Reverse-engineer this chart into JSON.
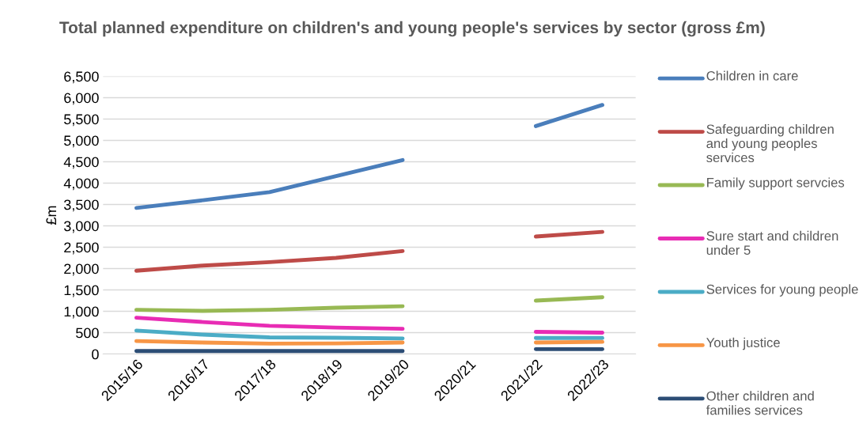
{
  "chart_data": {
    "type": "line",
    "title": "Total planned expenditure on children's and young people's services by sector (gross £m)",
    "ylabel": "£m",
    "categories": [
      "2015/16",
      "2016/17",
      "2017/18",
      "2018/19",
      "2019/20",
      "2020/21",
      "2021/22",
      "2022/23"
    ],
    "ylim": [
      0,
      6500
    ],
    "yticks": [
      {
        "value": 0,
        "label": "0"
      },
      {
        "value": 500,
        "label": "500"
      },
      {
        "value": 1000,
        "label": "1,000"
      },
      {
        "value": 1500,
        "label": "1,500"
      },
      {
        "value": 2000,
        "label": "2,000"
      },
      {
        "value": 2500,
        "label": "2,500"
      },
      {
        "value": 3000,
        "label": "3,000"
      },
      {
        "value": 3500,
        "label": "3,500"
      },
      {
        "value": 4000,
        "label": "4,000"
      },
      {
        "value": 4500,
        "label": "4,500"
      },
      {
        "value": 5000,
        "label": "5,000"
      },
      {
        "value": 5500,
        "label": "5,500"
      },
      {
        "value": 6000,
        "label": "6,000"
      },
      {
        "value": 6500,
        "label": "6,500"
      }
    ],
    "grid": "y",
    "legend": "right",
    "marker": "none",
    "line_style": "solid",
    "series": [
      {
        "name": "Children in care",
        "color": "#4a7ebb",
        "values": [
          3420,
          3600,
          3790,
          4165,
          4540,
          null,
          5335,
          5830
        ]
      },
      {
        "name": "Safeguarding children and young peoples services",
        "color": "#be4b48",
        "values": [
          1950,
          2070,
          2150,
          2250,
          2410,
          null,
          2750,
          2860
        ]
      },
      {
        "name": "Family support servcies",
        "color": "#98b954",
        "values": [
          1035,
          1010,
          1035,
          1085,
          1120,
          null,
          1250,
          1330
        ]
      },
      {
        "name": "Sure start and children under 5",
        "color": "#e82cb4",
        "values": [
          850,
          750,
          660,
          620,
          590,
          null,
          520,
          500
        ]
      },
      {
        "name": "Services for young people",
        "color": "#4bacc6",
        "values": [
          550,
          455,
          390,
          380,
          365,
          null,
          375,
          375
        ]
      },
      {
        "name": "Youth justice",
        "color": "#f79646",
        "values": [
          305,
          270,
          245,
          250,
          270,
          null,
          270,
          285
        ]
      },
      {
        "name": "Other children and families services",
        "color": "#2c4d75",
        "values": [
          70,
          70,
          70,
          70,
          70,
          null,
          115,
          115
        ]
      }
    ]
  }
}
